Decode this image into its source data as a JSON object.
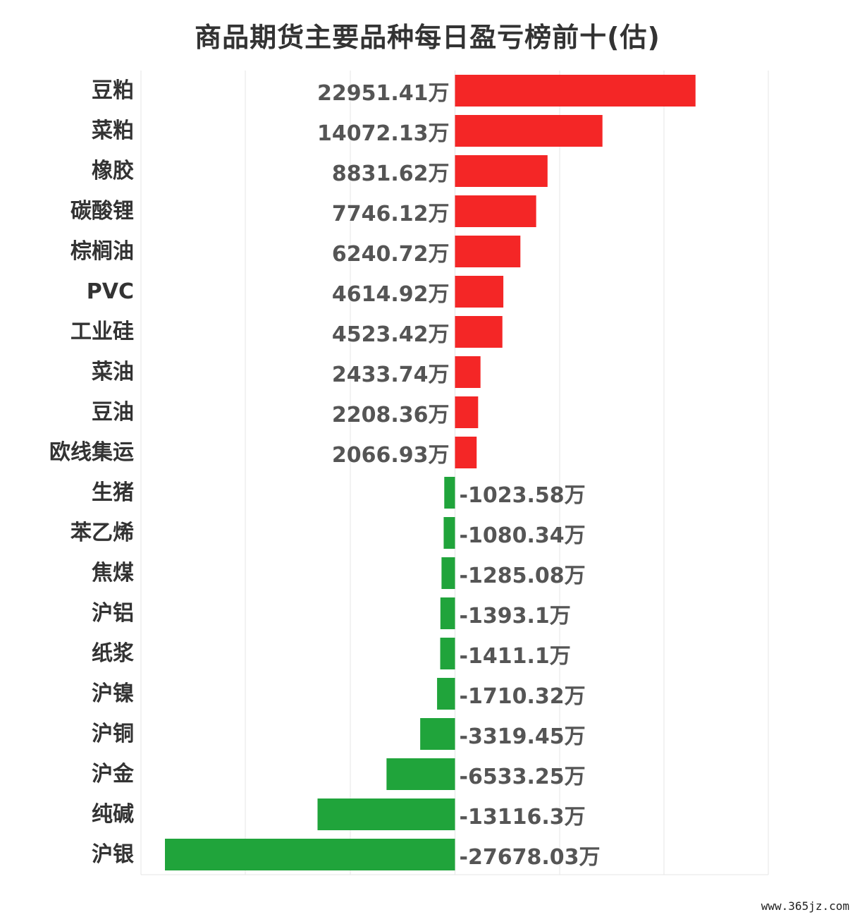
{
  "title": "商品期货主要品种每日盈亏榜前十(估)",
  "watermark": "www.365jz.com",
  "colors": {
    "positive": "#f42626",
    "negative": "#20a43b",
    "grid": "#e6e6e6",
    "category_text": "#333333",
    "value_text": "#555555"
  },
  "chart_data": {
    "type": "bar",
    "orientation": "horizontal",
    "title": "商品期货主要品种每日盈亏榜前十(估)",
    "unit_suffix": "万",
    "xlim": [
      -30000,
      30000
    ],
    "grid": true,
    "categories": [
      "豆粕",
      "菜粕",
      "橡胶",
      "碳酸锂",
      "棕榈油",
      "PVC",
      "工业硅",
      "菜油",
      "豆油",
      "欧线集运",
      "生猪",
      "苯乙烯",
      "焦煤",
      "沪铝",
      "纸浆",
      "沪镍",
      "沪铜",
      "沪金",
      "纯碱",
      "沪银"
    ],
    "values": [
      22951.41,
      14072.13,
      8831.62,
      7746.12,
      6240.72,
      4614.92,
      4523.42,
      2433.74,
      2208.36,
      2066.93,
      -1023.58,
      -1080.34,
      -1285.08,
      -1393.1,
      -1411.1,
      -1710.32,
      -3319.45,
      -6533.25,
      -13116.3,
      -27678.03
    ],
    "value_labels": [
      "22951.41万",
      "14072.13万",
      "8831.62万",
      "7746.12万",
      "6240.72万",
      "4614.92万",
      "4523.42万",
      "2433.74万",
      "2208.36万",
      "2066.93万",
      "-1023.58万",
      "-1080.34万",
      "-1285.08万",
      "-1393.1万",
      "-1411.1万",
      "-1710.32万",
      "-3319.45万",
      "-6533.25万",
      "-13116.3万",
      "-27678.03万"
    ]
  }
}
